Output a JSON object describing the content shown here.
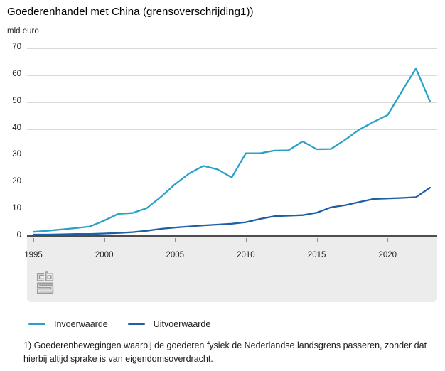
{
  "header": {
    "title": "Goederenhandel met China (grensoverschrijding1))",
    "unit_label": "mld euro"
  },
  "chart_data": {
    "type": "line",
    "title": "Goederenhandel met China (grensoverschrijding1))",
    "ylabel": "mld euro",
    "xlabel": "",
    "ylim": [
      0,
      70
    ],
    "grid": true,
    "legend_position": "bottom",
    "x": [
      1995,
      1996,
      1997,
      1998,
      1999,
      2000,
      2001,
      2002,
      2003,
      2004,
      2005,
      2006,
      2007,
      2008,
      2009,
      2010,
      2011,
      2012,
      2013,
      2014,
      2015,
      2016,
      2017,
      2018,
      2019,
      2020,
      2021,
      2022,
      2023
    ],
    "x_ticks": [
      1995,
      2000,
      2005,
      2010,
      2015,
      2020
    ],
    "y_ticks": [
      0,
      10,
      20,
      30,
      40,
      50,
      60,
      70
    ],
    "series": [
      {
        "name": "Invoerwaarde",
        "color": "#2aa1c8",
        "values": [
          1.8,
          2.2,
          2.7,
          3.2,
          3.8,
          6.0,
          8.5,
          8.8,
          10.6,
          14.8,
          19.5,
          23.5,
          26.3,
          25.0,
          22.0,
          31.0,
          31.0,
          32.0,
          32.1,
          35.4,
          32.5,
          32.6,
          36.0,
          39.8,
          42.6,
          45.2,
          54.0,
          62.5,
          50.2
        ]
      },
      {
        "name": "Uitvoerwaarde",
        "color": "#1f5fa5",
        "values": [
          0.8,
          0.8,
          0.9,
          1.0,
          1.0,
          1.2,
          1.4,
          1.7,
          2.2,
          2.9,
          3.4,
          3.8,
          4.2,
          4.5,
          4.8,
          5.4,
          6.6,
          7.6,
          7.8,
          8.0,
          8.9,
          10.9,
          11.7,
          12.9,
          14.0,
          14.2,
          14.4,
          14.7,
          18.2
        ]
      }
    ]
  },
  "footnote": {
    "text": "1) Goederenbewegingen waarbij de goederen fysiek de Nederlandse landsgrens passeren, zonder dat hierbij altijd sprake is van eigendomsoverdracht."
  },
  "logo": {
    "name": "CBS"
  },
  "colors": {
    "axis": "#4d4d4d",
    "grid": "#d9d9d9",
    "panel": "#ececec",
    "tick": "#8f8f8f",
    "text": "#222222",
    "logo": "#9b9b9b"
  }
}
